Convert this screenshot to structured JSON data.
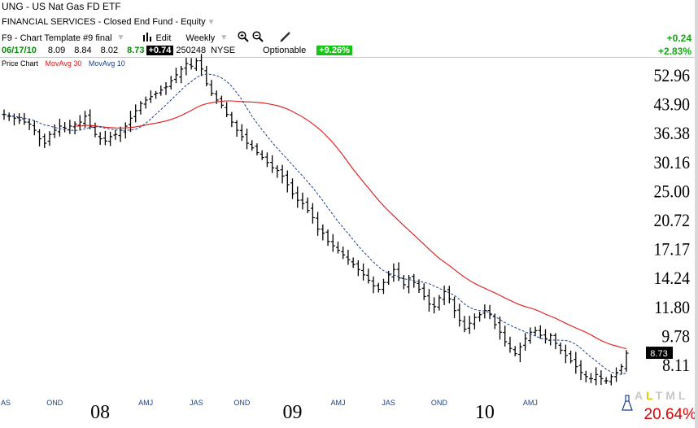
{
  "header": {
    "title": "UNG - US Nat Gas FD ETF",
    "category": "FINANCIAL SERVICES - Closed End Fund - Equity",
    "template": "F9 - Chart Template #9 final",
    "edit_label": "Edit",
    "period": "Weekly",
    "date": "06/17/10",
    "open": "8.09",
    "high": "8.84",
    "low": "8.02",
    "close": "8.73",
    "change": "+0.74",
    "volume": "250248",
    "exchange": "NYSE",
    "optionable": "Optionable",
    "change_pct": "+9.26%",
    "right_change": "+0.24",
    "right_change_pct": "+2.83%"
  },
  "legend": {
    "price": "Price Chart",
    "ma30": "MovAvg 30",
    "ma10": "MovAvg 10"
  },
  "colors": {
    "ma30": "#e01818",
    "ma10": "#1a3f8a",
    "bars": "#000000",
    "green_box": "#16c416",
    "pct": "#e00000"
  },
  "icons": [
    "chart-bars-icon",
    "zoom-in-icon",
    "zoom-out-icon",
    "pencil-icon",
    "flask-icon"
  ],
  "timeframes": {
    "active": "L",
    "items": [
      "A",
      "L",
      "T",
      "M",
      "L"
    ]
  },
  "bottom_pct": "20.64%",
  "chart_data": {
    "type": "ohlc",
    "scale": "log",
    "ylim": [
      7,
      62
    ],
    "y_ticks": [
      52.96,
      43.9,
      36.38,
      30.16,
      25.0,
      20.72,
      17.17,
      14.24,
      11.8,
      9.78,
      8.11
    ],
    "last_price": "8.73",
    "x_labels": [
      {
        "text": "AS",
        "x": 0
      },
      {
        "text": "OND",
        "x": 10
      },
      {
        "text": "08",
        "x": 19,
        "major": true
      },
      {
        "text": "AMJ",
        "x": 28
      },
      {
        "text": "JAS",
        "x": 38
      },
      {
        "text": "OND",
        "x": 47
      },
      {
        "text": "09",
        "x": 57,
        "major": true
      },
      {
        "text": "AMJ",
        "x": 66
      },
      {
        "text": "JAS",
        "x": 76
      },
      {
        "text": "OND",
        "x": 86
      },
      {
        "text": "10",
        "x": 95,
        "major": true
      },
      {
        "text": "AMJ",
        "x": 104
      }
    ],
    "closes": [
      41,
      40.5,
      40,
      39.5,
      39,
      38.5,
      37,
      35,
      34,
      36,
      37,
      38,
      37.5,
      38,
      38.5,
      39,
      40.5,
      38,
      36,
      35,
      34.5,
      35.5,
      36,
      37,
      38,
      40,
      42,
      44,
      45,
      46,
      47,
      48,
      49,
      51,
      53,
      55,
      57,
      56,
      58,
      55,
      50,
      47,
      45,
      43.5,
      41,
      39,
      37,
      35.5,
      34,
      33,
      32,
      31,
      30,
      29,
      28.5,
      27.5,
      26,
      24.5,
      23.5,
      23,
      22,
      21,
      19.5,
      19,
      18,
      17.5,
      17,
      16.5,
      16,
      15.5,
      15,
      14.5,
      14,
      13.5,
      13.2,
      13.8,
      14.5,
      15,
      14.2,
      13.6,
      14.2,
      13.8,
      13.2,
      12.6,
      12,
      11.8,
      12.5,
      13,
      12.4,
      11.5,
      10.8,
      10.2,
      10.6,
      11,
      11.2,
      11.5,
      11.2,
      10.5,
      10,
      9.4,
      9,
      8.7,
      9.1,
      9.6,
      10,
      10.1,
      9.8,
      9.6,
      9.8,
      9.3,
      8.9,
      8.6,
      8.3,
      8,
      7.7,
      7.5,
      7.4,
      7.6,
      7.4,
      7.3,
      7.5,
      7.7,
      8,
      8.73
    ],
    "series": [
      {
        "name": "MovAvg 30",
        "values": []
      },
      {
        "name": "MovAvg 10",
        "values": []
      }
    ]
  }
}
